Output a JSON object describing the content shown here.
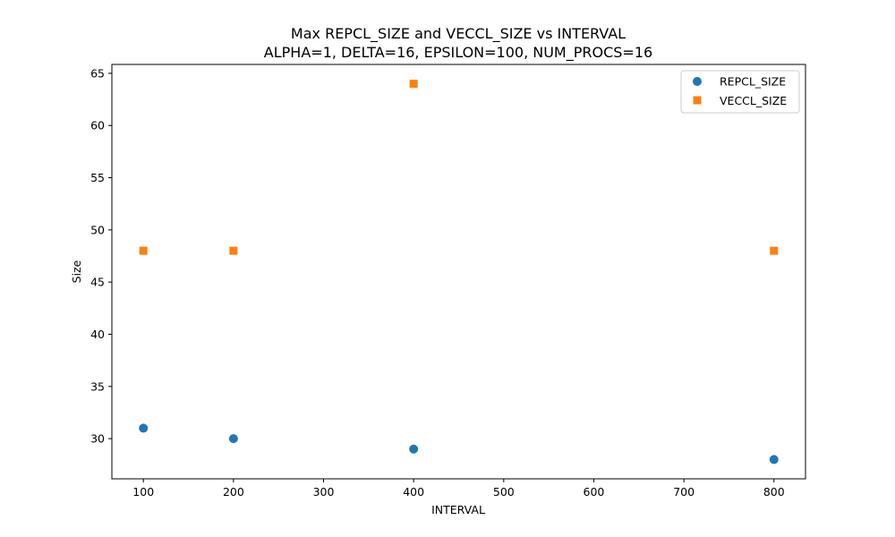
{
  "chart_data": {
    "type": "scatter",
    "title": "Max REPCL_SIZE and VECCL_SIZE vs INTERVAL",
    "subtitle": "ALPHA=1, DELTA=16, EPSILON=100, NUM_PROCS=16",
    "xlabel": "INTERVAL",
    "ylabel": "Size",
    "xlim": [
      65,
      835
    ],
    "ylim": [
      26.15,
      65.85
    ],
    "xticks": [
      100,
      200,
      300,
      400,
      500,
      600,
      700,
      800
    ],
    "yticks": [
      30,
      35,
      40,
      45,
      50,
      55,
      60,
      65
    ],
    "grid": false,
    "legend_position": "top-right",
    "series": [
      {
        "name": "REPCL_SIZE",
        "marker": "circle",
        "color": "#1f77b4",
        "points": [
          {
            "x": 100,
            "y": 31
          },
          {
            "x": 200,
            "y": 30
          },
          {
            "x": 400,
            "y": 29
          },
          {
            "x": 800,
            "y": 28
          }
        ]
      },
      {
        "name": "VECCL_SIZE",
        "marker": "square",
        "color": "#ff7f0e",
        "points": [
          {
            "x": 100,
            "y": 48
          },
          {
            "x": 200,
            "y": 48
          },
          {
            "x": 400,
            "y": 64
          },
          {
            "x": 800,
            "y": 48
          }
        ]
      }
    ]
  }
}
